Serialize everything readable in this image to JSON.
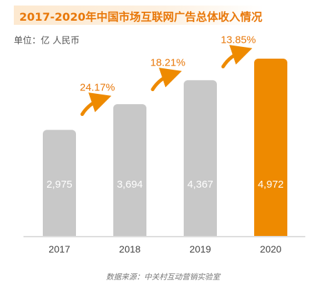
{
  "unit_label": "单位：亿 人民币",
  "source": "数据来源：中关村互动营销实验室",
  "colors": {
    "title": "#e8780a",
    "bar": "#c8c8c8",
    "highlight_bar": "#ee8a00",
    "growth_text": "#e8780a",
    "arrow": "#ee8a00",
    "axis": "#bbbbbb",
    "bar_label": "#ffffff",
    "tick": "#444444"
  },
  "chart_data": {
    "type": "bar",
    "title": "2017-2020年中国市场互联网广告总体收入情况",
    "categories": [
      "2017",
      "2018",
      "2019",
      "2020"
    ],
    "values": [
      2975,
      3694,
      4367,
      4972
    ],
    "value_labels": [
      "2,975",
      "3,694",
      "4,367",
      "4,972"
    ],
    "highlight_category": "2020",
    "growth_rates": [
      "24.17%",
      "18.21%",
      "13.85%"
    ],
    "xlabel": "",
    "ylabel": "",
    "ylim": [
      0,
      5300
    ],
    "grid": false,
    "legend": "none"
  }
}
